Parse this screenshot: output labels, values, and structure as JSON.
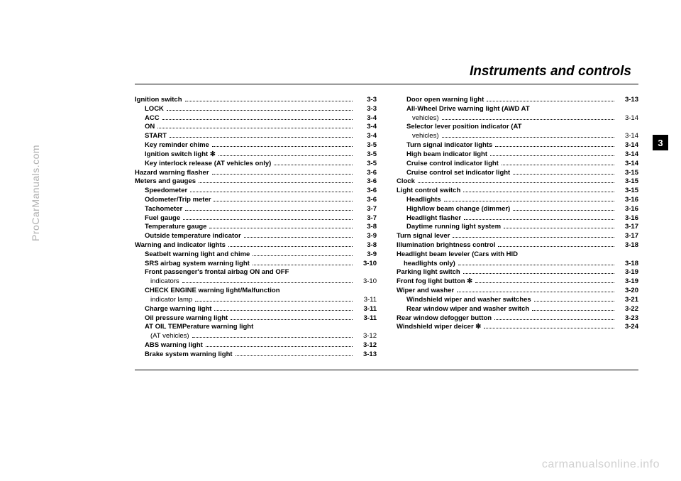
{
  "chapter_title": "Instruments and controls",
  "chapter_tab": "3",
  "side_watermark": "ProCarManuals.com",
  "bottom_watermark": "carmanualsonline.info",
  "left_col": [
    {
      "t": "section",
      "label": "Ignition switch",
      "page": "3-3"
    },
    {
      "t": "sub",
      "label": "LOCK",
      "page": "3-3"
    },
    {
      "t": "sub",
      "label": "ACC",
      "page": "3-4"
    },
    {
      "t": "sub",
      "label": "ON",
      "page": "3-4"
    },
    {
      "t": "sub",
      "label": "START",
      "page": "3-4"
    },
    {
      "t": "sub",
      "label": "Key reminder chime",
      "page": "3-5"
    },
    {
      "t": "sub",
      "label": "Ignition switch light ✻",
      "page": "3-5"
    },
    {
      "t": "sub",
      "label": "Key interlock release (AT vehicles only)",
      "page": "3-5"
    },
    {
      "t": "section",
      "label": "Hazard warning flasher",
      "page": "3-6"
    },
    {
      "t": "section",
      "label": "Meters and gauges",
      "page": "3-6"
    },
    {
      "t": "sub",
      "label": "Speedometer",
      "page": "3-6"
    },
    {
      "t": "sub",
      "label": "Odometer/Trip meter",
      "page": "3-6"
    },
    {
      "t": "sub",
      "label": "Tachometer",
      "page": "3-7"
    },
    {
      "t": "sub",
      "label": "Fuel gauge",
      "page": "3-7"
    },
    {
      "t": "sub",
      "label": "Temperature gauge",
      "page": "3-8"
    },
    {
      "t": "sub",
      "label": "Outside temperature indicator",
      "page": "3-9"
    },
    {
      "t": "section",
      "label": "Warning and indicator lights",
      "page": "3-8"
    },
    {
      "t": "sub",
      "label": "Seatbelt warning light and chime",
      "page": "3-9"
    },
    {
      "t": "sub",
      "label": "SRS airbag system warning light",
      "page": "3-10"
    },
    {
      "t": "sub",
      "label": "Front passenger's frontal airbag ON and OFF"
    },
    {
      "t": "sub2",
      "label": "indicators",
      "page": "3-10"
    },
    {
      "t": "sub",
      "label": "CHECK ENGINE warning light/Malfunction"
    },
    {
      "t": "sub2",
      "label": "indicator lamp",
      "page": "3-11"
    },
    {
      "t": "sub",
      "label": "Charge warning light",
      "page": "3-11"
    },
    {
      "t": "sub",
      "label": "Oil pressure warning light",
      "page": "3-11"
    },
    {
      "t": "sub",
      "label": "AT OIL TEMPerature warning light"
    },
    {
      "t": "sub2",
      "label": "(AT vehicles)",
      "page": "3-12"
    },
    {
      "t": "sub",
      "label": "ABS warning light",
      "page": "3-12"
    },
    {
      "t": "sub",
      "label": "Brake system warning light",
      "page": "3-13"
    }
  ],
  "right_col": [
    {
      "t": "sub",
      "label": "Door open warning light",
      "page": "3-13"
    },
    {
      "t": "sub",
      "label": "All-Wheel Drive warning light (AWD AT"
    },
    {
      "t": "sub2",
      "label": "vehicles)",
      "page": "3-14"
    },
    {
      "t": "sub",
      "label": "Selector lever position indicator (AT"
    },
    {
      "t": "sub2",
      "label": "vehicles)",
      "page": "3-14"
    },
    {
      "t": "sub",
      "label": "Turn signal indicator lights",
      "page": "3-14"
    },
    {
      "t": "sub",
      "label": "High beam indicator light",
      "page": "3-14"
    },
    {
      "t": "sub",
      "label": "Cruise control indicator light",
      "page": "3-14"
    },
    {
      "t": "sub",
      "label": "Cruise control set indicator light",
      "page": "3-15"
    },
    {
      "t": "section",
      "label": "Clock",
      "page": "3-15"
    },
    {
      "t": "section",
      "label": "Light control switch",
      "page": "3-15"
    },
    {
      "t": "sub",
      "label": "Headlights",
      "page": "3-16"
    },
    {
      "t": "sub",
      "label": "High/low beam change (dimmer)",
      "page": "3-16"
    },
    {
      "t": "sub",
      "label": "Headlight flasher",
      "page": "3-16"
    },
    {
      "t": "sub",
      "label": "Daytime running light system",
      "page": "3-17"
    },
    {
      "t": "section",
      "label": "Turn signal lever",
      "page": "3-17"
    },
    {
      "t": "section",
      "label": "Illumination brightness control",
      "page": "3-18"
    },
    {
      "t": "section",
      "label": "Headlight beam leveler (Cars with HID"
    },
    {
      "t": "section_cont",
      "label": "headlights only)",
      "page": "3-18"
    },
    {
      "t": "section",
      "label": "Parking light switch",
      "page": "3-19"
    },
    {
      "t": "section",
      "label": "Front fog light button ✻",
      "page": "3-19"
    },
    {
      "t": "section",
      "label": "Wiper and washer",
      "page": "3-20"
    },
    {
      "t": "sub",
      "label": "Windshield wiper and washer switches",
      "page": "3-21"
    },
    {
      "t": "sub",
      "label": "Rear window wiper and washer switch",
      "page": "3-22"
    },
    {
      "t": "section",
      "label": "Rear window defogger button",
      "page": "3-23"
    },
    {
      "t": "section",
      "label": "Windshield wiper deicer ✻",
      "page": "3-24"
    }
  ]
}
